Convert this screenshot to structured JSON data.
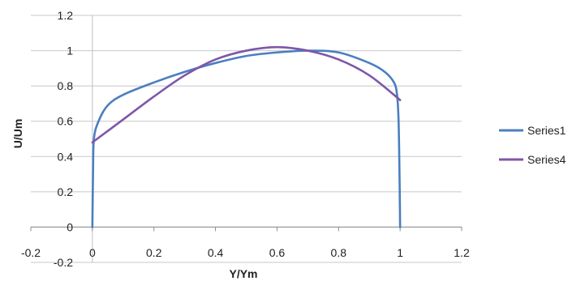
{
  "chart_data": {
    "type": "line",
    "title": "",
    "xlabel": "Y/Ym",
    "ylabel": "U/Um",
    "xlim": [
      -0.2,
      1.2
    ],
    "ylim": [
      -0.2,
      1.2
    ],
    "x_ticks": [
      "-0.2",
      "0",
      "0.2",
      "0.4",
      "0.6",
      "0.8",
      "1",
      "1.2"
    ],
    "y_ticks": [
      "-0.2",
      "0",
      "0.2",
      "0.4",
      "0.6",
      "0.8",
      "1",
      "1.2"
    ],
    "grid": "horizontal",
    "legend_position": "right",
    "series": [
      {
        "name": "Series1",
        "color": "#4a7fbf",
        "points": [
          [
            0,
            0
          ],
          [
            0.002,
            0.3
          ],
          [
            0.005,
            0.5
          ],
          [
            0.02,
            0.6
          ],
          [
            0.05,
            0.69
          ],
          [
            0.1,
            0.75
          ],
          [
            0.2,
            0.82
          ],
          [
            0.3,
            0.88
          ],
          [
            0.4,
            0.93
          ],
          [
            0.5,
            0.97
          ],
          [
            0.6,
            0.99
          ],
          [
            0.7,
            1.0
          ],
          [
            0.8,
            0.99
          ],
          [
            0.9,
            0.93
          ],
          [
            0.95,
            0.88
          ],
          [
            0.98,
            0.82
          ],
          [
            0.99,
            0.75
          ],
          [
            0.995,
            0.6
          ],
          [
            0.998,
            0.3
          ],
          [
            1.0,
            0
          ]
        ]
      },
      {
        "name": "Series4",
        "color": "#7f56a7",
        "points": [
          [
            0,
            0.48
          ],
          [
            0.1,
            0.61
          ],
          [
            0.2,
            0.74
          ],
          [
            0.3,
            0.86
          ],
          [
            0.4,
            0.95
          ],
          [
            0.5,
            1.0
          ],
          [
            0.6,
            1.02
          ],
          [
            0.7,
            1.0
          ],
          [
            0.8,
            0.95
          ],
          [
            0.9,
            0.86
          ],
          [
            1.0,
            0.72
          ]
        ]
      }
    ]
  }
}
